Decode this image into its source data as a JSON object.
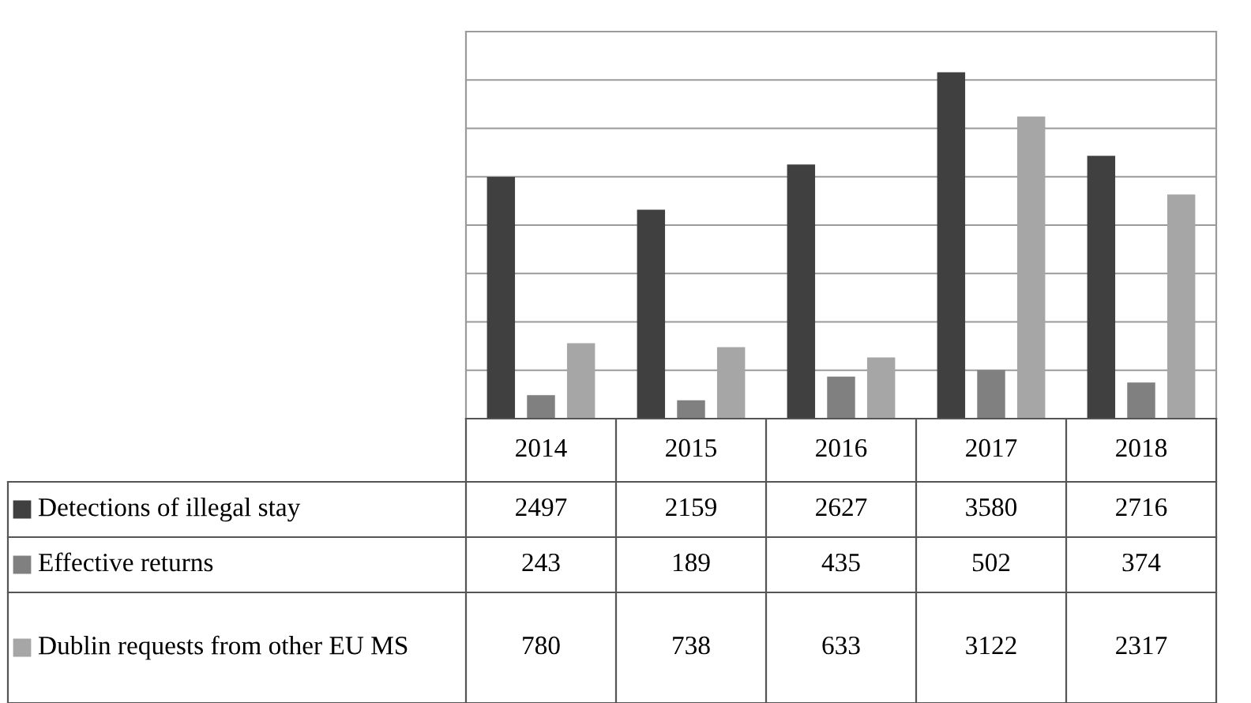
{
  "chart_data": {
    "type": "bar",
    "categories": [
      "2014",
      "2015",
      "2016",
      "2017",
      "2018"
    ],
    "series": [
      {
        "name": "Detections of illegal stay",
        "color": "#404040",
        "values": [
          2497,
          2159,
          2627,
          3580,
          2716
        ]
      },
      {
        "name": "Effective returns",
        "color": "#808080",
        "values": [
          243,
          189,
          435,
          502,
          374
        ]
      },
      {
        "name": "Dublin requests from other EU MS",
        "color": "#a6a6a6",
        "values": [
          780,
          738,
          633,
          3122,
          2317
        ]
      }
    ],
    "data_labels": true,
    "ylim": [
      0,
      4000
    ],
    "yticks": [
      {
        "value": 0,
        "label": null
      },
      {
        "value": 500,
        "label": null
      },
      {
        "value": 1000,
        "label": null
      },
      {
        "value": 1500,
        "label": null
      },
      {
        "value": 2000,
        "label": null
      },
      {
        "value": 2500,
        "label": null
      },
      {
        "value": 3000,
        "label": null
      },
      {
        "value": 3500,
        "label": null
      },
      {
        "value": 4000,
        "label": null
      }
    ],
    "grid": "y",
    "legend": "bottom left"
  }
}
